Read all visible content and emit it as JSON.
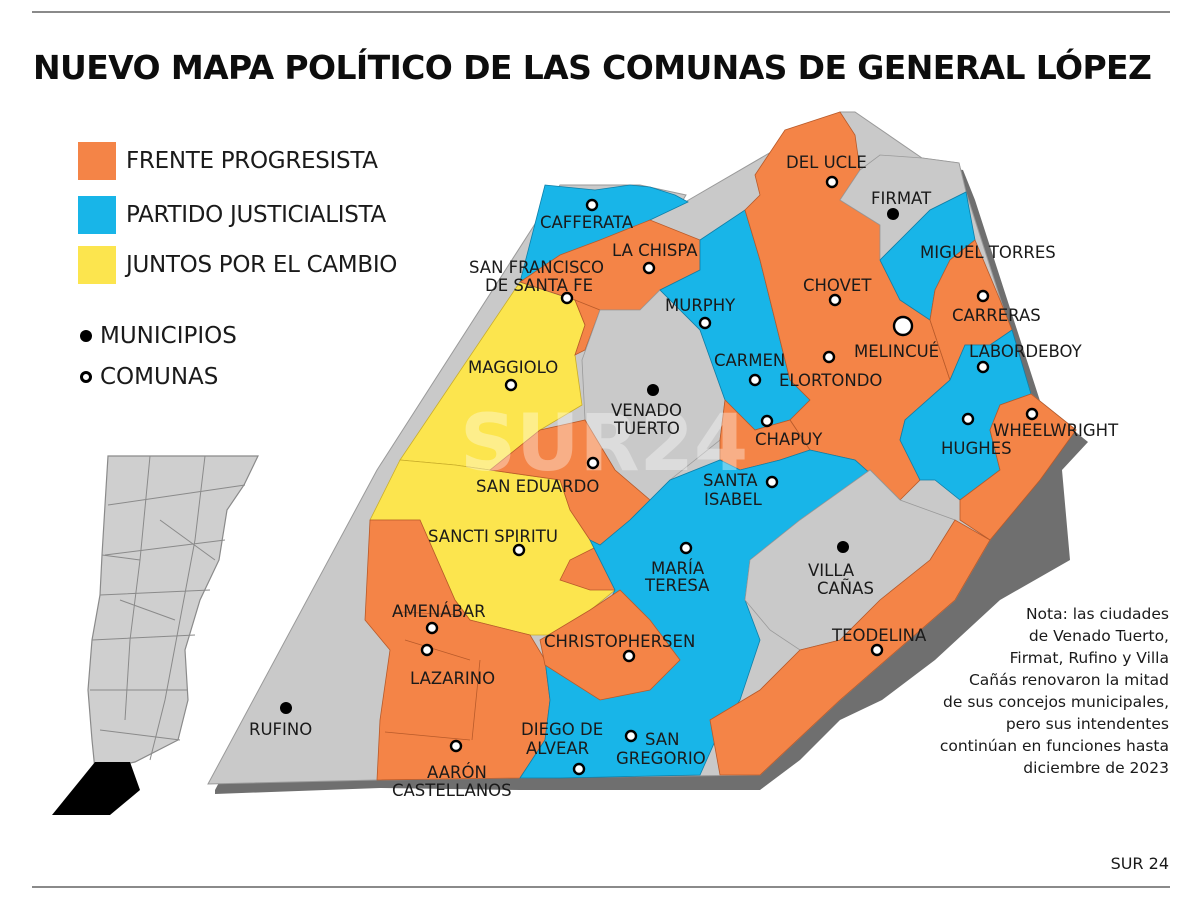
{
  "title": "NUEVO MAPA POLÍTICO DE LAS COMUNAS DE GENERAL LÓPEZ",
  "legend": [
    {
      "label": "FRENTE PROGRESISTA",
      "color": "#f48447"
    },
    {
      "label": "PARTIDO JUSTICIALISTA",
      "color": "#18b5e8"
    },
    {
      "label": "JUNTOS POR EL CAMBIO",
      "color": "#fce54e"
    }
  ],
  "markers": {
    "municipios": "MUNICIPIOS",
    "comunas": "COMUNAS"
  },
  "colors": {
    "frente": "#f48447",
    "pj": "#18b5e8",
    "juntos": "#fce54e",
    "municipio": "#c9c9c9",
    "shadow": "#6f6f6f"
  },
  "places": {
    "del_ucle": "DEL UCLE",
    "firmat": "FIRMAT",
    "cafferata": "CAFFERATA",
    "la_chispa": "LA CHISPA",
    "miguel_torres": "MIGUEL TORRES",
    "sfsf_1": "SAN FRANCISCO",
    "sfsf_2": "DE SANTA FE",
    "chovet": "CHOVET",
    "murphy": "MURPHY",
    "carreras": "CARRERAS",
    "melincue": "MELINCUÉ",
    "maggiolo": "MAGGIOLO",
    "carmen": "CARMEN",
    "elortondo": "ELORTONDO",
    "labordeboy": "LABORDEBOY",
    "venado_1": "VENADO",
    "venado_2": "TUERTO",
    "chapuy": "CHAPUY",
    "wheelwright": "WHEELWRIGHT",
    "hughes": "HUGHES",
    "san_eduardo": "SAN EDUARDO",
    "santa_isabel_1": "SANTA",
    "santa_isabel_2": "ISABEL",
    "sancti_spiritu": "SANCTI SPIRITU",
    "maria_teresa_1": "MARÍA",
    "maria_teresa_2": "TERESA",
    "villa_canas_1": "VILLA",
    "villa_canas_2": "CAÑAS",
    "amenabar": "AMENÁBAR",
    "christophersen": "CHRISTOPHERSEN",
    "teodelina": "TEODELINA",
    "lazarino": "LAZARINO",
    "rufino": "RUFINO",
    "diego_1": "DIEGO DE",
    "diego_2": "ALVEAR",
    "san_gregorio_1": "SAN",
    "san_gregorio_2": "GREGORIO",
    "aaron_1": "AARÓN",
    "aaron_2": "CASTELLANOS"
  },
  "watermark": "SUR24",
  "note": [
    "Nota: las ciudades",
    "de Venado Tuerto,",
    "Firmat, Rufino y Villa",
    "Cañás renovaron la mitad",
    "de sus concejos municipales,",
    "pero sus intendentes",
    "continúan en funciones hasta",
    "diciembre de 2023"
  ],
  "source": "SUR 24"
}
